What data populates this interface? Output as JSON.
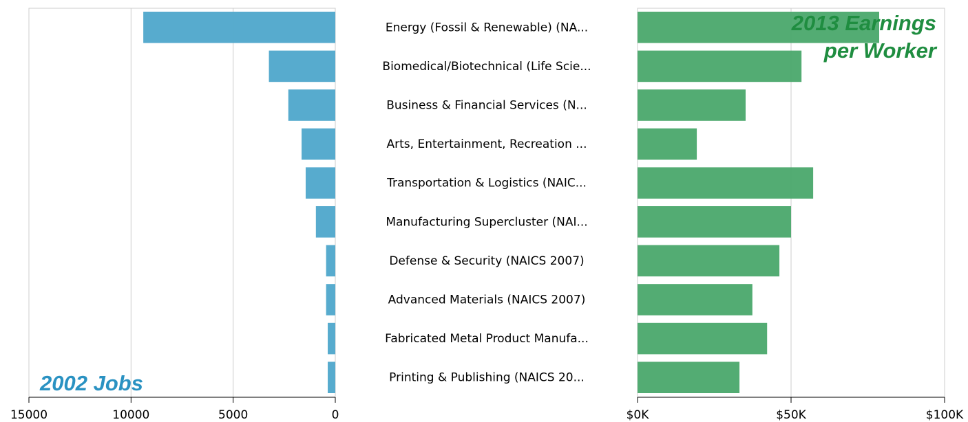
{
  "chart_data": [
    {
      "type": "bar",
      "title": "2002 Jobs",
      "color": "#4ea6cb",
      "title_color": "#2a92c2",
      "categories": [
        "Energy (Fossil & Renewable) (NA...",
        "Biomedical/Biotechnical (Life Scie...",
        "Business & Financial Services (N...",
        "Arts, Entertainment, Recreation ...",
        "Transportation & Logistics (NAIC...",
        "Manufacturing Supercluster (NAI...",
        "Defense & Security (NAICS 2007)",
        "Advanced Materials (NAICS 2007)",
        "Fabricated Metal Product Manufa...",
        "Printing & Publishing (NAICS 20..."
      ],
      "values": [
        9400,
        3250,
        2300,
        1650,
        1450,
        950,
        450,
        450,
        370,
        370
      ],
      "xlim": [
        15000,
        0
      ],
      "xticks": [
        15000,
        10000,
        5000,
        0
      ],
      "grid": true
    },
    {
      "type": "bar",
      "title": "2013 Earnings per Worker",
      "color": "#4aa86b",
      "title_color": "#1f8d40",
      "values": [
        78700,
        53400,
        35200,
        19300,
        57200,
        50000,
        46200,
        37400,
        42200,
        33200
      ],
      "xlim": [
        0,
        100000
      ],
      "xticks": [
        {
          "value": 0,
          "label": "$0K"
        },
        {
          "value": 50000,
          "label": "$50K"
        },
        {
          "value": 100000,
          "label": "$100K"
        }
      ],
      "grid": true
    }
  ]
}
